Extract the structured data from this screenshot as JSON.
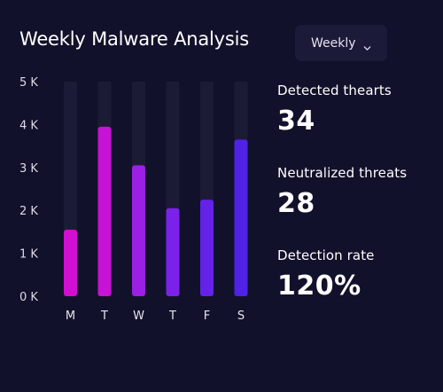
{
  "header": {
    "title": "Weekly Malware Analysis",
    "period_select": "Weekly",
    "period_icon": "chevron-down-icon"
  },
  "stats": [
    {
      "label": "Detected thearts",
      "value": "34"
    },
    {
      "label": "Neutralized threats",
      "value": "28"
    },
    {
      "label": "Detection rate",
      "value": "120%"
    }
  ],
  "colors": {
    "background": "#12112b",
    "track": "#1c1b36",
    "bar_gradient": [
      "#d10fd2",
      "#9f1fe3",
      "#7a22ea",
      "#5620e8"
    ]
  },
  "chart_data": {
    "type": "bar",
    "categories": [
      "M",
      "T",
      "W",
      "T",
      "F",
      "S"
    ],
    "values": [
      1550,
      3950,
      3050,
      2050,
      2250,
      3650
    ],
    "bar_colors": [
      "#d10fd2",
      "#c613d6",
      "#9c1fe4",
      "#7a22ea",
      "#6422e8",
      "#4f22e6"
    ],
    "ylim": [
      0,
      5000
    ],
    "yticks": [
      {
        "value": 5000,
        "label": "5 K"
      },
      {
        "value": 4000,
        "label": "4 K"
      },
      {
        "value": 3000,
        "label": "3 K"
      },
      {
        "value": 2000,
        "label": "2 K"
      },
      {
        "value": 1000,
        "label": "1 K"
      },
      {
        "value": 0,
        "label": "0 K"
      }
    ],
    "title": "",
    "xlabel": "",
    "ylabel": "",
    "grid": false
  }
}
